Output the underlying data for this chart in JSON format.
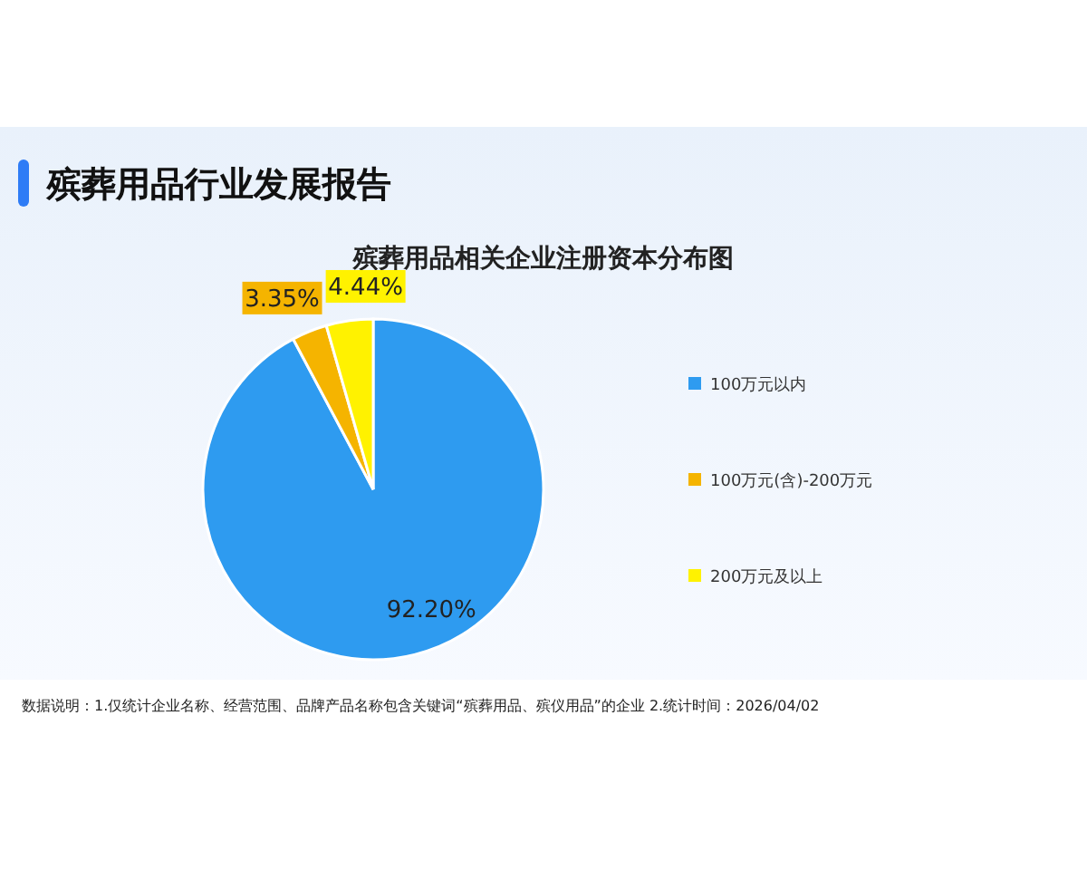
{
  "chart_data": {
    "type": "pie",
    "title": "殡葬用品行业发展报告",
    "subtitle": "殡葬用品相关企业注册资本分布图",
    "categories": [
      "100万元以内",
      "100万元(含)-200万元",
      "200万元及以上"
    ],
    "values": [
      92.2,
      3.35,
      4.44
    ],
    "colors": [
      "#2e9bf0",
      "#f5b400",
      "#fff200"
    ],
    "value_labels": [
      "92.20%",
      "3.35%",
      "4.44%"
    ],
    "legend": "right",
    "annotations": [
      "数据说明：1.仅统计企业名称、经营范围、品牌产品名称包含关键词“殡葬用品、殡仪用品”的企业  2.统计时间：2026/04/02"
    ]
  }
}
